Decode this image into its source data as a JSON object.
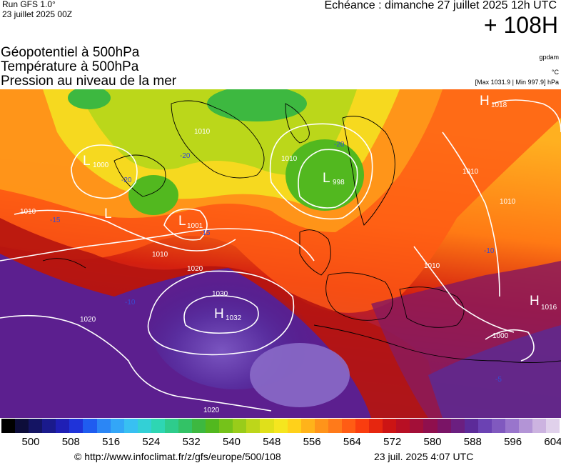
{
  "header": {
    "run_label": "Run GFS 1.0°",
    "run_date": "23 juillet 2025 00Z",
    "echeance": "Echéance : dimanche 27 juillet 2025 12h UTC",
    "lead_time": "+ 108H"
  },
  "titles": {
    "line1": "Géopotentiel à 500hPa",
    "line2": "Température à 500hPa",
    "line3": "Pression au niveau de la mer"
  },
  "units": {
    "geopotential": "gpdam",
    "temperature": "°C",
    "pressure_extremes": "[Max 1031.9 | Min 997.9] hPa"
  },
  "map": {
    "pressure_centers": [
      {
        "type": "H",
        "value": "1032"
      },
      {
        "type": "H",
        "value": "1018"
      },
      {
        "type": "H",
        "value": "1016"
      },
      {
        "type": "L",
        "value": "1000"
      },
      {
        "type": "L",
        "value": "1001"
      },
      {
        "type": "L",
        "value": "998"
      },
      {
        "type": "L",
        "value": ""
      }
    ],
    "isobar_labels": [
      "1010",
      "1010",
      "1020",
      "1030",
      "1020",
      "1020",
      "1010",
      "1010",
      "1010",
      "1010",
      "1000",
      "1010"
    ],
    "temperature_labels": [
      "-20",
      "-20",
      "-10",
      "-20",
      "-15",
      "-15",
      "-10",
      "-5"
    ]
  },
  "colorbar": {
    "colors": [
      "#000000",
      "#0d0d3a",
      "#141463",
      "#1a1a8c",
      "#1f1fb5",
      "#1f33d9",
      "#1f5cf0",
      "#2b86f5",
      "#33a6f7",
      "#38c0f2",
      "#33d0d6",
      "#2ed6b3",
      "#2ecc8c",
      "#33c266",
      "#3db840",
      "#52b81f",
      "#75c21a",
      "#99cc1a",
      "#bdd61a",
      "#e0e01a",
      "#f5e61f",
      "#ffd11a",
      "#ffb31a",
      "#ff941a",
      "#ff7a1a",
      "#ff5c14",
      "#fa3d0f",
      "#e6260f",
      "#cc1414",
      "#b80f24",
      "#a30f38",
      "#8f0f4d",
      "#7a1466",
      "#6b1f80",
      "#5c2b99",
      "#6b42b3",
      "#8059bf",
      "#9975cc",
      "#b394d6",
      "#ccb3e0",
      "#e0d1eb"
    ],
    "labels": [
      "500",
      "508",
      "516",
      "524",
      "532",
      "540",
      "548",
      "556",
      "564",
      "572",
      "580",
      "588",
      "596",
      "604"
    ]
  },
  "footer": {
    "credit": "© http://www.infoclimat.fr/z/gfs/europe/500/108",
    "date": "23 juil. 2025  4:07 UTC"
  }
}
